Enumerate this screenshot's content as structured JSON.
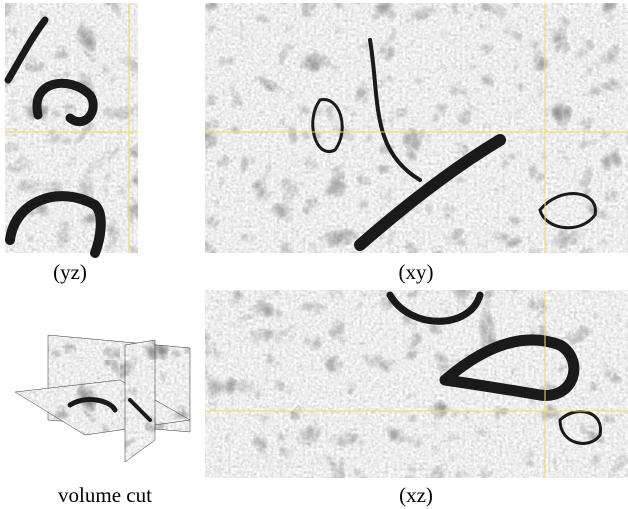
{
  "panels": [
    {
      "caption": "(yz)"
    },
    {
      "caption": "(xy)"
    },
    {
      "caption": "volume cut"
    },
    {
      "caption": "(xz)"
    }
  ]
}
